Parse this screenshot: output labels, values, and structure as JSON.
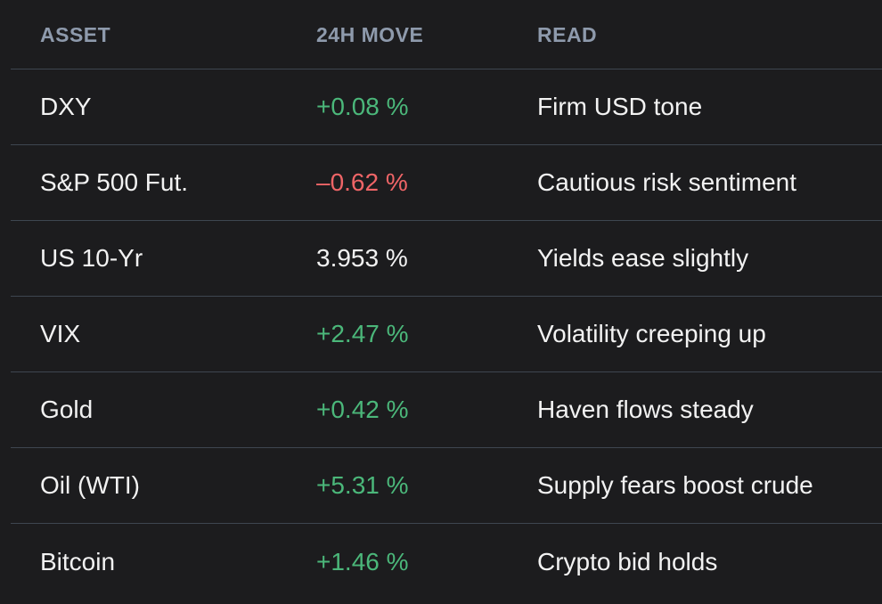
{
  "table": {
    "headers": {
      "asset": "ASSET",
      "move": "24H MOVE",
      "read": "READ"
    },
    "rows": [
      {
        "asset": "DXY",
        "move": "+0.08 %",
        "direction": "up",
        "read": "Firm USD tone"
      },
      {
        "asset": "S&P 500 Fut.",
        "move": "–0.62 %",
        "direction": "down",
        "read": "Cautious risk sentiment"
      },
      {
        "asset": "US 10-Yr",
        "move": "3.953 %",
        "direction": "neutral",
        "read": "Yields ease slightly"
      },
      {
        "asset": "VIX",
        "move": "+2.47 %",
        "direction": "up",
        "read": "Volatility creeping up"
      },
      {
        "asset": "Gold",
        "move": "+0.42 %",
        "direction": "up",
        "read": "Haven flows steady"
      },
      {
        "asset": "Oil (WTI)",
        "move": "+5.31 %",
        "direction": "up",
        "read": "Supply fears boost crude"
      },
      {
        "asset": "Bitcoin",
        "move": "+1.46 %",
        "direction": "up",
        "read": "Crypto bid holds"
      }
    ]
  },
  "colors": {
    "up": "#4bb77a",
    "down": "#ef6567",
    "neutral": "#f2f2f2",
    "header": "#8e9aac",
    "divider": "#3e4650",
    "background": "#1c1c1e"
  }
}
